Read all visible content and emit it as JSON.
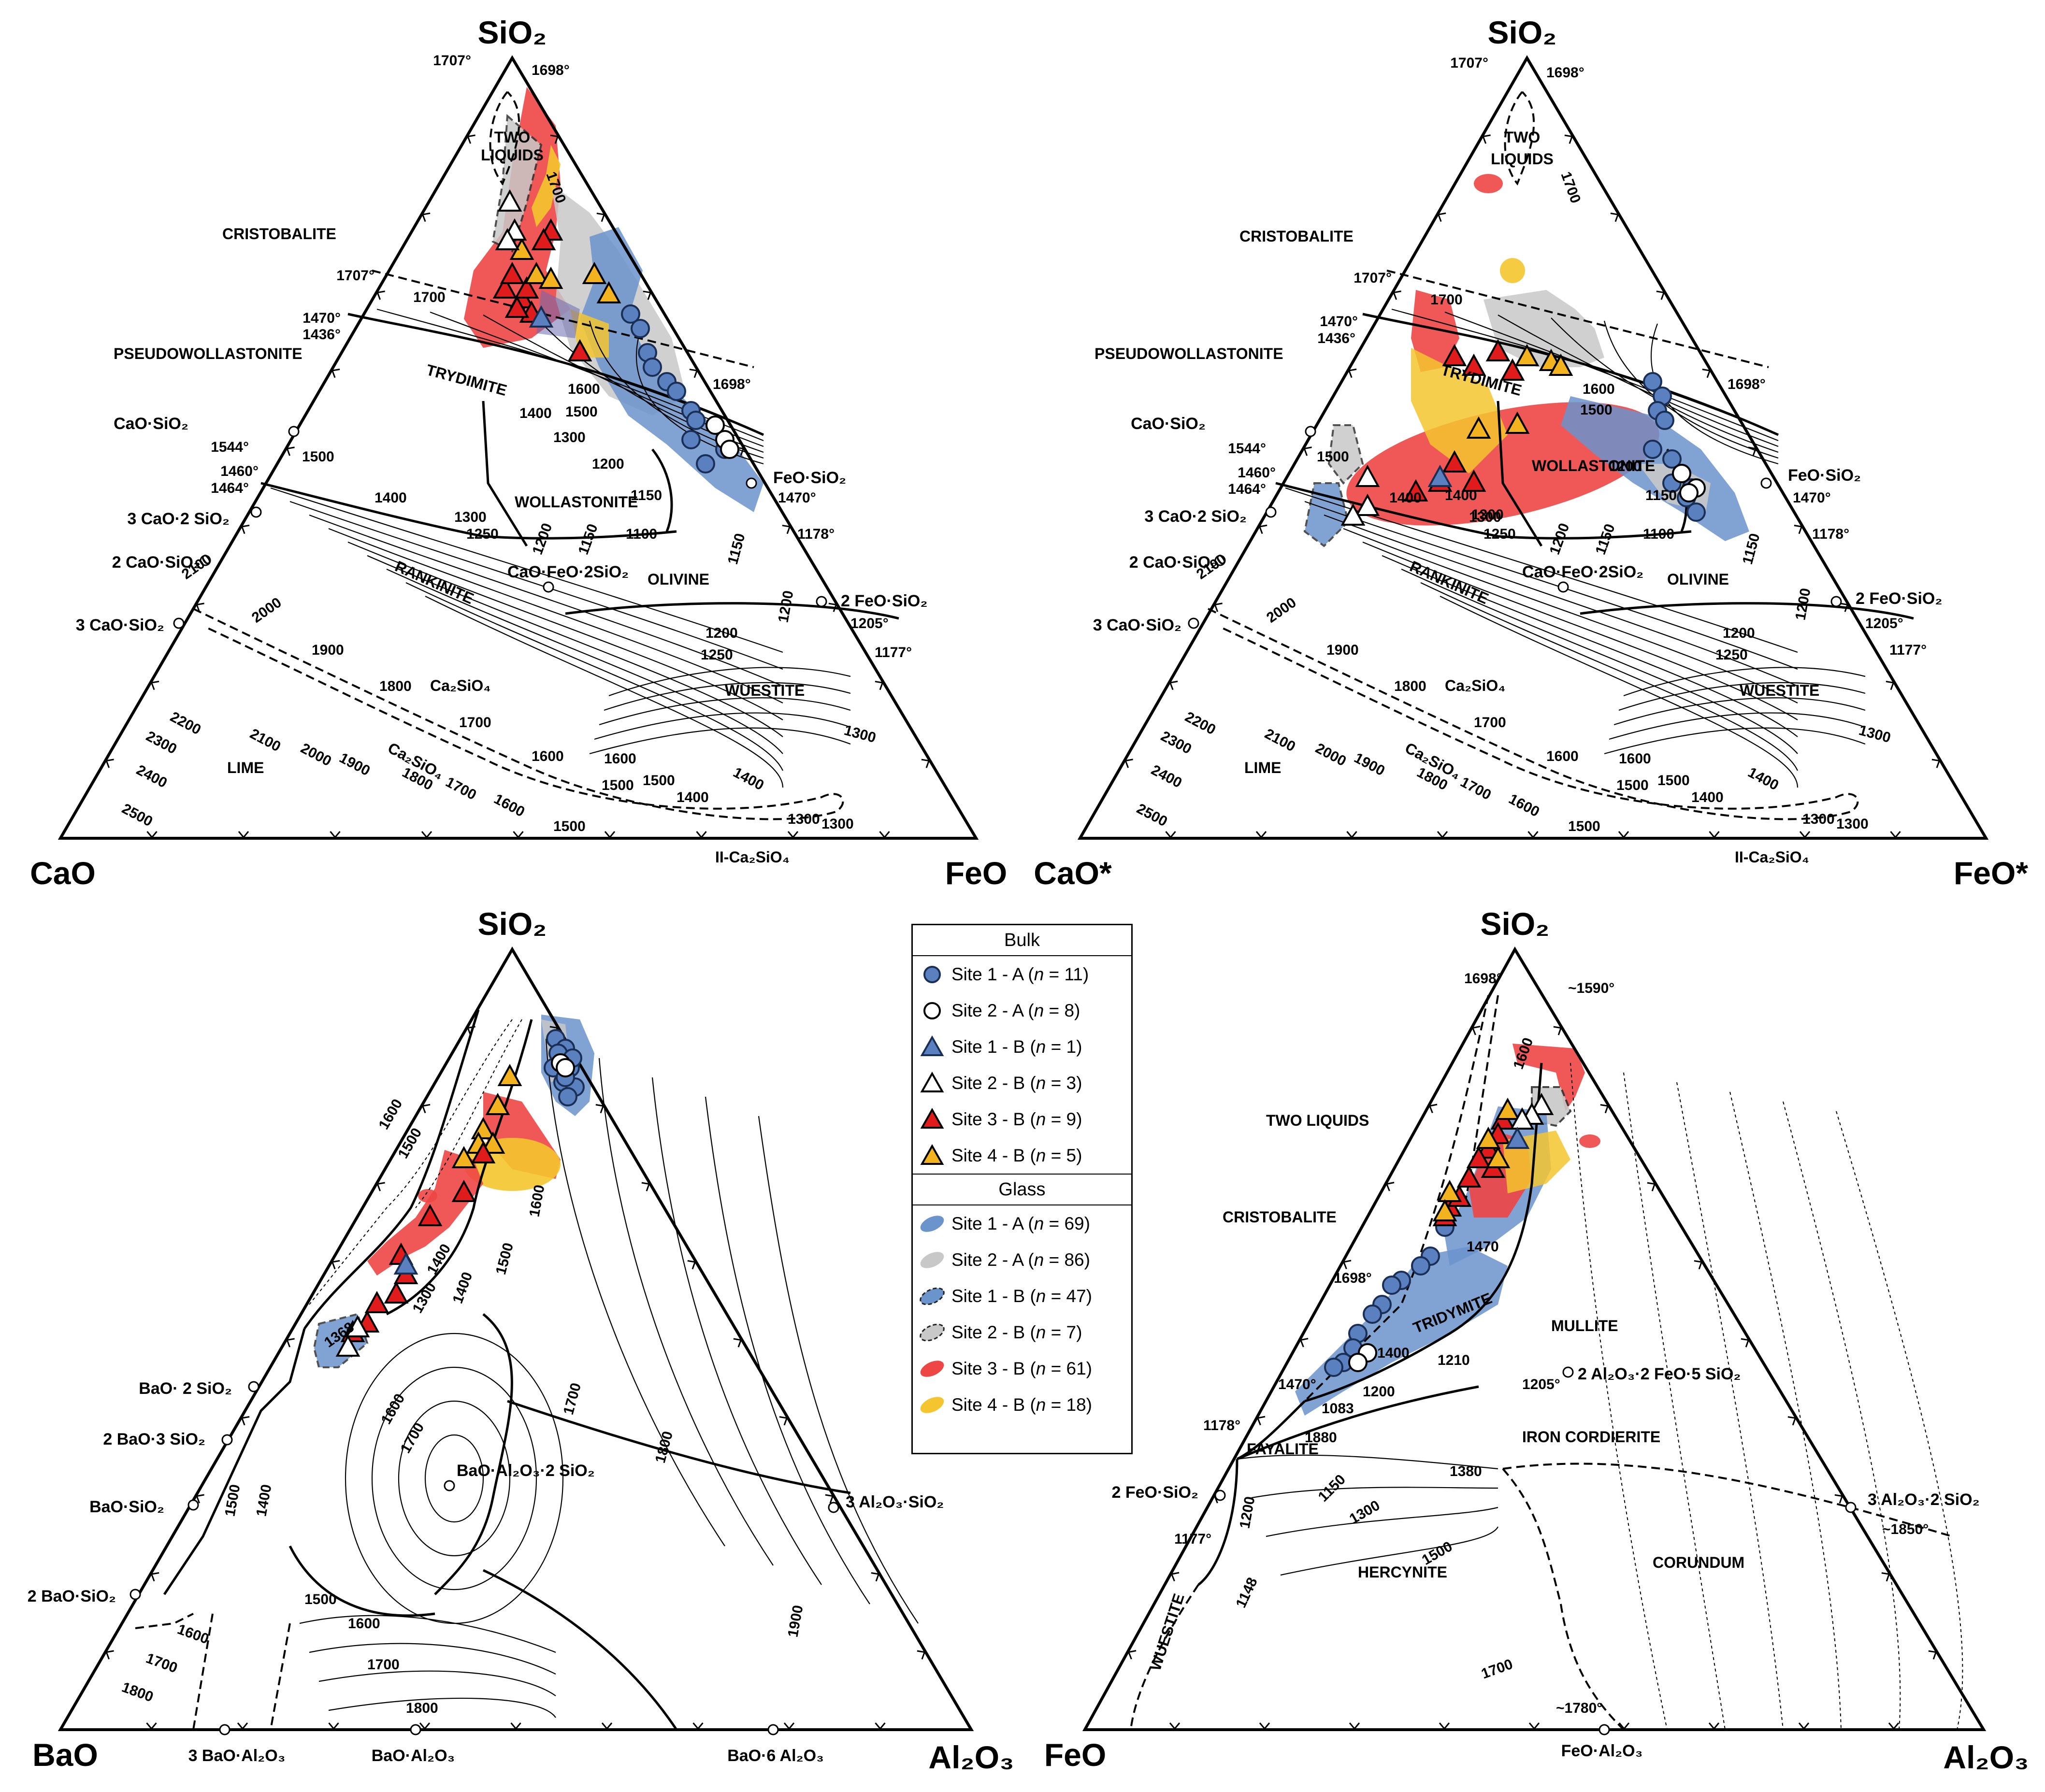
{
  "diagram_cao_feo": {
    "corners": {
      "top": "SiO₂",
      "left": "CaO",
      "right": "FeO"
    },
    "phases": [
      "TWO",
      "LIQUIDS",
      "CRISTOBALITE",
      "PSEUDOWOLLASTONITE",
      "TRYDIMITE",
      "WOLLASTONITE",
      "RANKINITE",
      "OLIVINE",
      "WUESTITE",
      "LIME",
      "Ca₂SiO₄",
      "Ca₂SiO₄",
      "II-Ca₂SiO₄"
    ],
    "compounds": [
      "CaO·SiO₂",
      "3 CaO·2 SiO₂",
      "2 CaO·SiO₂",
      "3 CaO·SiO₂",
      "FeO·SiO₂",
      "2 FeO·SiO₂",
      "CaO·FeO·2SiO₂"
    ],
    "temperatures": [
      "1707°",
      "1698°",
      "1707°",
      "1470°",
      "1436°",
      "1544°",
      "1460°",
      "1464°",
      "1698°",
      "1470°",
      "1178°",
      "1205°",
      "1177°",
      "1700",
      "1700",
      "1600",
      "1500",
      "1400",
      "1300",
      "1200",
      "1150",
      "1100",
      "1500",
      "1400",
      "1300",
      "1250",
      "1200",
      "1150",
      "1150",
      "1200",
      "1200",
      "1250",
      "1300",
      "2100",
      "2000",
      "1900",
      "1800",
      "1700",
      "1600",
      "1500",
      "1400",
      "1300",
      "2200",
      "2300",
      "2400",
      "2500",
      "2100",
      "2000",
      "1900",
      "1800",
      "1700",
      "1600",
      "1500",
      "1600",
      "1500",
      "1400",
      "1300"
    ]
  },
  "diagram_cao_star": {
    "corners": {
      "top": "SiO₂",
      "left": "CaO*",
      "right": "FeO*"
    },
    "phases": [
      "TWO",
      "LIQUIDS",
      "CRISTOBALITE",
      "PSEUDOWOLLASTONITE",
      "TRYDIMITE",
      "WOLLASTONITE",
      "RANKINITE",
      "OLIVINE",
      "WUESTITE",
      "LIME",
      "Ca₂SiO₄",
      "Ca₂SiO₄",
      "II-Ca₂SiO₄"
    ],
    "compounds": [
      "CaO·SiO₂",
      "3 CaO·2 SiO₂",
      "2 CaO·SiO₂",
      "3 CaO·SiO₂",
      "FeO·SiO₂",
      "2 FeO·SiO₂",
      "CaO·FeO·2SiO₂"
    ],
    "temperatures": [
      "1707°",
      "1698°",
      "1707°",
      "1470°",
      "1436°",
      "1544°",
      "1460°",
      "1464°",
      "1698°",
      "1470°",
      "1178°",
      "1205°",
      "1177°",
      "1700",
      "1700",
      "1600",
      "1500",
      "1400",
      "1300",
      "1200",
      "1150",
      "1100",
      "1500",
      "1400",
      "1300",
      "1250",
      "1200",
      "1150",
      "1150",
      "1200",
      "1200",
      "1250",
      "1300",
      "2100",
      "2000",
      "1900",
      "1800",
      "1700",
      "1600",
      "1500",
      "1400",
      "1300",
      "2200",
      "2300",
      "2400",
      "2500",
      "2100",
      "2000",
      "1900",
      "1800",
      "1700",
      "1600",
      "1500",
      "1600",
      "1500",
      "1400",
      "1300"
    ]
  },
  "diagram_bao_al2o3": {
    "corners": {
      "top": "SiO₂",
      "left": "BaO",
      "right": "Al₂O₃"
    },
    "compounds": [
      "BaO· 2 SiO₂",
      "2 BaO·3 SiO₂",
      "BaO·SiO₂",
      "2 BaO·SiO₂",
      "3 BaO·Al₂O₃",
      "BaO·Al₂O₃",
      "BaO·6 Al₂O₃",
      "BaO·Al₂O₃·2 SiO₂",
      "3 Al₂O₃·SiO₂"
    ],
    "temperatures": [
      "1600",
      "1500",
      "1400",
      "1300",
      "1400",
      "1500",
      "1600",
      "1700",
      "1600",
      "1700",
      "1800",
      "1900",
      "1500",
      "1600",
      "1700",
      "1800",
      "1500",
      "1400",
      "1600",
      "1700",
      "1800",
      "1368"
    ]
  },
  "diagram_feo_al2o3": {
    "corners": {
      "top": "SiO₂",
      "left": "FeO",
      "right": "Al₂O₃"
    },
    "phases": [
      "TWO LIQUIDS",
      "CRISTOBALITE",
      "TRIDYMITE",
      "MULLITE",
      "IRON CORDIERITE",
      "FAYALITE",
      "HERCYNITE",
      "CORUNDUM",
      "WUESTITE"
    ],
    "compounds": [
      "2 Al₂O₃·2 FeO·5 SiO₂",
      "2 FeO·SiO₂",
      "3 Al₂O₃·2 SiO₂",
      "FeO·Al₂O₃"
    ],
    "temperatures": [
      "1698°",
      "~1590°",
      "1698°",
      "1470°",
      "1178°",
      "1177°",
      "1205°",
      "~1850°",
      "~1780°",
      "1600",
      "1470",
      "1400",
      "1200",
      "1083",
      "1210",
      "1880",
      "1150",
      "1380",
      "1300",
      "1200",
      "1148",
      "1500",
      "1700"
    ]
  },
  "legend": {
    "bulk_title": "Bulk",
    "glass_title": "Glass",
    "bulk": [
      {
        "label": "Site 1 - A (",
        "n": "n",
        "count": " = 11)",
        "shape": "circle",
        "color": "#5b80c0",
        "stroke": "#1a2f55"
      },
      {
        "label": "Site 2 - A (",
        "n": "n",
        "count": " = 8)",
        "shape": "circle",
        "color": "#ffffff",
        "stroke": "#000000"
      },
      {
        "label": "Site 1 - B (",
        "n": "n",
        "count": " = 1)",
        "shape": "triangle",
        "color": "#5b80c0",
        "stroke": "#1a2f55"
      },
      {
        "label": "Site 2 - B (",
        "n": "n",
        "count": " = 3)",
        "shape": "triangle",
        "color": "#ffffff",
        "stroke": "#000000"
      },
      {
        "label": "Site 3 - B (",
        "n": "n",
        "count": " = 9)",
        "shape": "triangle",
        "color": "#e01b1b",
        "stroke": "#000000"
      },
      {
        "label": "Site 4 - B (",
        "n": "n",
        "count": " = 5)",
        "shape": "triangle",
        "color": "#f2b31e",
        "stroke": "#000000"
      }
    ],
    "glass": [
      {
        "label": "Site 1 - A (",
        "n": "n",
        "count": " = 69)",
        "color": "#6b93cc",
        "dashed": false
      },
      {
        "label": "Site 2 - A (",
        "n": "n",
        "count": " = 86)",
        "color": "#c8c8c8",
        "dashed": false
      },
      {
        "label": "Site 1 - B (",
        "n": "n",
        "count": " = 47)",
        "color": "#6b93cc",
        "dashed": true
      },
      {
        "label": "Site 2 - B (",
        "n": "n",
        "count": " = 7)",
        "color": "#c8c8c8",
        "dashed": true
      },
      {
        "label": "Site 3 - B (",
        "n": "n",
        "count": " = 61)",
        "color": "#ee4545",
        "dashed": false
      },
      {
        "label": "Site 4 - B (",
        "n": "n",
        "count": " = 18)",
        "color": "#f4c52e",
        "dashed": false
      }
    ]
  }
}
